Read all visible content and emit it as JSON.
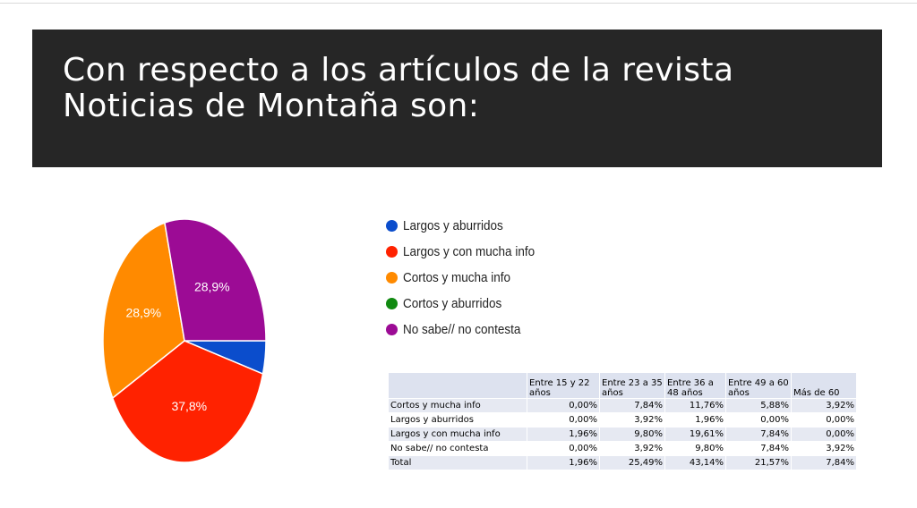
{
  "slide": {
    "title_line1": "Con respecto a los artículos de la revista",
    "title_line2": "Noticias de Montaña son:"
  },
  "chart_data": {
    "type": "pie",
    "slices": [
      {
        "name": "Largos y aburridos",
        "value": 4.4,
        "color": "#0b4dcc",
        "label": ""
      },
      {
        "name": "Largos y con mucha info",
        "value": 37.8,
        "color": "#ff2200",
        "label": "37,8%"
      },
      {
        "name": "Cortos y mucha info",
        "value": 28.9,
        "color": "#ff8a00",
        "label": "28,9%"
      },
      {
        "name": "Cortos y aburridos",
        "value": 0,
        "color": "#118a11",
        "label": ""
      },
      {
        "name": "No sabe// no contesta",
        "value": 28.9,
        "color": "#9c0b95",
        "label": "28,9%"
      }
    ],
    "legend_position": "right"
  },
  "table": {
    "headers": [
      "",
      "Entre 15 y 22 años",
      "Entre 23 a 35 años",
      "Entre 36 a 48 años",
      "Entre 49 a 60 años",
      "Más de 60"
    ],
    "rows": [
      [
        "Cortos y mucha info",
        "0,00%",
        "7,84%",
        "11,76%",
        "5,88%",
        "3,92%"
      ],
      [
        "Largos y aburridos",
        "0,00%",
        "3,92%",
        "1,96%",
        "0,00%",
        "0,00%"
      ],
      [
        "Largos y con mucha info",
        "1,96%",
        "9,80%",
        "19,61%",
        "7,84%",
        "0,00%"
      ],
      [
        "No sabe// no contesta",
        "0,00%",
        "3,92%",
        "9,80%",
        "7,84%",
        "3,92%"
      ],
      [
        "Total",
        "1,96%",
        "25,49%",
        "43,14%",
        "21,57%",
        "7,84%"
      ]
    ]
  }
}
